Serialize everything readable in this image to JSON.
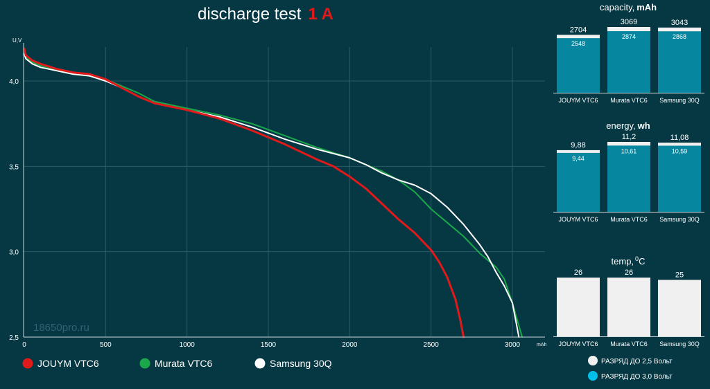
{
  "title": {
    "prefix": "discharge test",
    "emphasis": "1 A"
  },
  "watermark": "18650pro.ru",
  "colors": {
    "background": "#063844",
    "grid": "#2a5a66",
    "red": "#e01a1a",
    "green": "#1aa84a",
    "white": "#ffffff",
    "bar_outer": "#f0f0f0",
    "bar_inner": "#06879f",
    "legend_blue": "#00bfe8"
  },
  "chart_data": [
    {
      "type": "line",
      "title": "discharge test 1 A",
      "ylabel": "U,V",
      "xlabel": "mAh",
      "xlim": [
        0,
        3200
      ],
      "ylim": [
        2.5,
        4.2
      ],
      "x_ticks": [
        "0",
        "500",
        "1000",
        "1500",
        "2000",
        "2500",
        "3000"
      ],
      "x_tick_values": [
        0,
        500,
        1000,
        1500,
        2000,
        2500,
        3000
      ],
      "y_ticks": [
        "4,0",
        "3,5",
        "3,0",
        "2,5"
      ],
      "y_tick_values": [
        4.0,
        3.5,
        3.0,
        2.5
      ],
      "grid": true,
      "legend_position": "bottom",
      "series": [
        {
          "name": "JOUYM VTC6",
          "color": "#e01a1a",
          "points": [
            [
              0,
              4.19
            ],
            [
              10,
              4.15
            ],
            [
              50,
              4.12
            ],
            [
              100,
              4.1
            ],
            [
              200,
              4.07
            ],
            [
              300,
              4.05
            ],
            [
              400,
              4.04
            ],
            [
              500,
              4.01
            ],
            [
              600,
              3.96
            ],
            [
              700,
              3.91
            ],
            [
              800,
              3.87
            ],
            [
              1000,
              3.83
            ],
            [
              1200,
              3.78
            ],
            [
              1400,
              3.71
            ],
            [
              1600,
              3.63
            ],
            [
              1800,
              3.54
            ],
            [
              1900,
              3.5
            ],
            [
              2000,
              3.44
            ],
            [
              2100,
              3.37
            ],
            [
              2200,
              3.28
            ],
            [
              2300,
              3.19
            ],
            [
              2400,
              3.11
            ],
            [
              2500,
              3.01
            ],
            [
              2550,
              2.94
            ],
            [
              2600,
              2.85
            ],
            [
              2650,
              2.72
            ],
            [
              2680,
              2.6
            ],
            [
              2700,
              2.5
            ]
          ]
        },
        {
          "name": "Murata VTC6",
          "color": "#1aa84a",
          "points": [
            [
              0,
              4.17
            ],
            [
              10,
              4.14
            ],
            [
              50,
              4.11
            ],
            [
              100,
              4.09
            ],
            [
              200,
              4.06
            ],
            [
              300,
              4.04
            ],
            [
              400,
              4.03
            ],
            [
              500,
              4.01
            ],
            [
              600,
              3.97
            ],
            [
              700,
              3.93
            ],
            [
              800,
              3.88
            ],
            [
              1000,
              3.84
            ],
            [
              1200,
              3.8
            ],
            [
              1400,
              3.75
            ],
            [
              1600,
              3.68
            ],
            [
              1800,
              3.61
            ],
            [
              2000,
              3.55
            ],
            [
              2100,
              3.51
            ],
            [
              2200,
              3.47
            ],
            [
              2300,
              3.42
            ],
            [
              2400,
              3.35
            ],
            [
              2500,
              3.25
            ],
            [
              2600,
              3.17
            ],
            [
              2700,
              3.09
            ],
            [
              2800,
              2.99
            ],
            [
              2900,
              2.91
            ],
            [
              2950,
              2.84
            ],
            [
              3000,
              2.7
            ],
            [
              3030,
              2.6
            ],
            [
              3060,
              2.5
            ]
          ]
        },
        {
          "name": "Samsung 30Q",
          "color": "#ffffff",
          "points": [
            [
              0,
              4.16
            ],
            [
              10,
              4.13
            ],
            [
              50,
              4.1
            ],
            [
              100,
              4.08
            ],
            [
              200,
              4.06
            ],
            [
              300,
              4.04
            ],
            [
              400,
              4.03
            ],
            [
              500,
              4.0
            ],
            [
              600,
              3.96
            ],
            [
              700,
              3.91
            ],
            [
              800,
              3.87
            ],
            [
              1000,
              3.83
            ],
            [
              1200,
              3.79
            ],
            [
              1400,
              3.73
            ],
            [
              1600,
              3.66
            ],
            [
              1800,
              3.6
            ],
            [
              2000,
              3.55
            ],
            [
              2100,
              3.51
            ],
            [
              2200,
              3.46
            ],
            [
              2300,
              3.42
            ],
            [
              2400,
              3.39
            ],
            [
              2500,
              3.34
            ],
            [
              2600,
              3.26
            ],
            [
              2700,
              3.16
            ],
            [
              2800,
              3.04
            ],
            [
              2850,
              2.97
            ],
            [
              2900,
              2.88
            ],
            [
              2950,
              2.8
            ],
            [
              3000,
              2.7
            ],
            [
              3020,
              2.6
            ],
            [
              3040,
              2.5
            ]
          ]
        }
      ]
    },
    {
      "type": "bar",
      "title_prefix": "capacity,",
      "title_unit": "mAh",
      "categories": [
        "JOUYM VTC6",
        "Murata VTC6",
        "Samsung 30Q"
      ],
      "ylim": [
        0,
        3100
      ],
      "series": [
        {
          "name": "РАЗРЯД ДО 2,5 Вольт",
          "values": [
            2704,
            3069,
            3043
          ],
          "labels": [
            "2704",
            "3069",
            "3043"
          ]
        },
        {
          "name": "РАЗРЯД ДО 3,0 Вольт",
          "values": [
            2548,
            2874,
            2868
          ],
          "labels": [
            "2548",
            "2874",
            "2868"
          ]
        }
      ]
    },
    {
      "type": "bar",
      "title_prefix": "energy,",
      "title_unit": "wh",
      "categories": [
        "JOUYM VTC6",
        "Murata VTC6",
        "Samsung 30Q"
      ],
      "ylim": [
        0,
        11.5
      ],
      "series": [
        {
          "name": "РАЗРЯД ДО 2,5 Вольт",
          "values": [
            9.88,
            11.2,
            11.08
          ],
          "labels": [
            "9,88",
            "11,2",
            "11,08"
          ]
        },
        {
          "name": "РАЗРЯД ДО 3,0 Вольт",
          "values": [
            9.44,
            10.61,
            10.59
          ],
          "labels": [
            "9,44",
            "10,61",
            "10,59"
          ]
        }
      ]
    },
    {
      "type": "bar",
      "title_prefix": "temp,",
      "title_sup": "0",
      "title_unit": "C",
      "categories": [
        "JOUYM VTC6",
        "Murata VTC6",
        "Samsung 30Q"
      ],
      "ylim": [
        0,
        26
      ],
      "series": [
        {
          "name": "temp",
          "values": [
            26,
            26,
            25
          ],
          "labels": [
            "26",
            "26",
            "25"
          ]
        }
      ]
    }
  ],
  "bar_legend": [
    {
      "label": "РАЗРЯД ДО 2,5 Вольт",
      "color": "#f0f0f0"
    },
    {
      "label": "РАЗРЯД ДО 3,0 Вольт",
      "color": "#00bfe8"
    }
  ]
}
